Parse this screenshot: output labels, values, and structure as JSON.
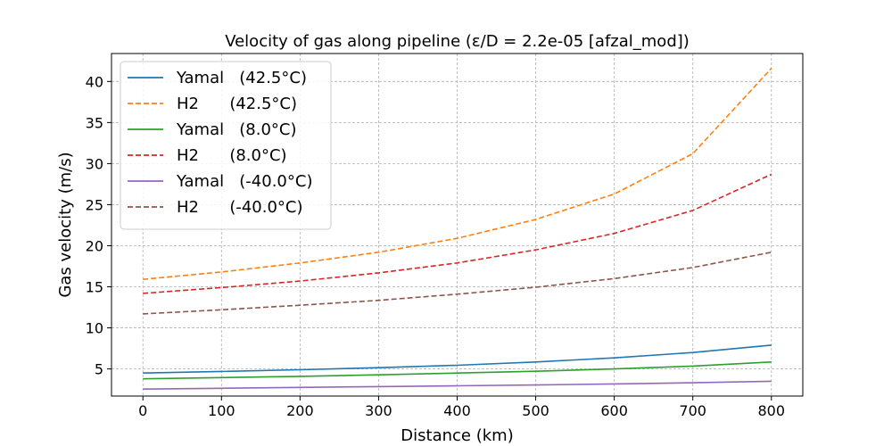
{
  "chart_data": {
    "type": "line",
    "title": "Velocity of gas along pipeline  (ε/D = 2.2e-05 [afzal_mod])",
    "xlabel": "Distance (km)",
    "ylabel": "Gas velocity (m/s)",
    "xlim": [
      -40,
      840
    ],
    "ylim": [
      1.7,
      43.4
    ],
    "xticks": [
      0,
      100,
      200,
      300,
      400,
      500,
      600,
      700,
      800
    ],
    "yticks": [
      5,
      10,
      15,
      20,
      25,
      30,
      35,
      40
    ],
    "grid": true,
    "legend_position": "top-left",
    "x": [
      0,
      100,
      200,
      300,
      400,
      500,
      600,
      700,
      800
    ],
    "series": [
      {
        "name": "Yamal   (42.5°C)",
        "color": "#1f77b4",
        "dash": "solid",
        "values": [
          4.5,
          4.7,
          4.9,
          5.15,
          5.45,
          5.85,
          6.35,
          7.0,
          7.9
        ]
      },
      {
        "name": "H2      (42.5°C)",
        "color": "#ff7f0e",
        "dash": "dashed",
        "values": [
          15.9,
          16.8,
          17.9,
          19.2,
          20.9,
          23.2,
          26.3,
          31.2,
          41.6
        ]
      },
      {
        "name": "Yamal   (8.0°C)",
        "color": "#2ca02c",
        "dash": "solid",
        "values": [
          3.8,
          3.95,
          4.1,
          4.28,
          4.5,
          4.72,
          5.0,
          5.35,
          5.85
        ]
      },
      {
        "name": "H2      (8.0°C)",
        "color": "#d62728",
        "dash": "dashed",
        "values": [
          14.2,
          14.9,
          15.7,
          16.7,
          17.9,
          19.5,
          21.5,
          24.3,
          28.7
        ]
      },
      {
        "name": "Yamal   (-40.0°C)",
        "color": "#9467bd",
        "dash": "solid",
        "values": [
          2.55,
          2.65,
          2.75,
          2.85,
          2.95,
          3.05,
          3.18,
          3.32,
          3.5
        ]
      },
      {
        "name": "H2      (-40.0°C)",
        "color": "#8c564b",
        "dash": "dashed",
        "values": [
          11.7,
          12.2,
          12.75,
          13.35,
          14.1,
          14.95,
          16.0,
          17.35,
          19.2
        ]
      }
    ]
  }
}
